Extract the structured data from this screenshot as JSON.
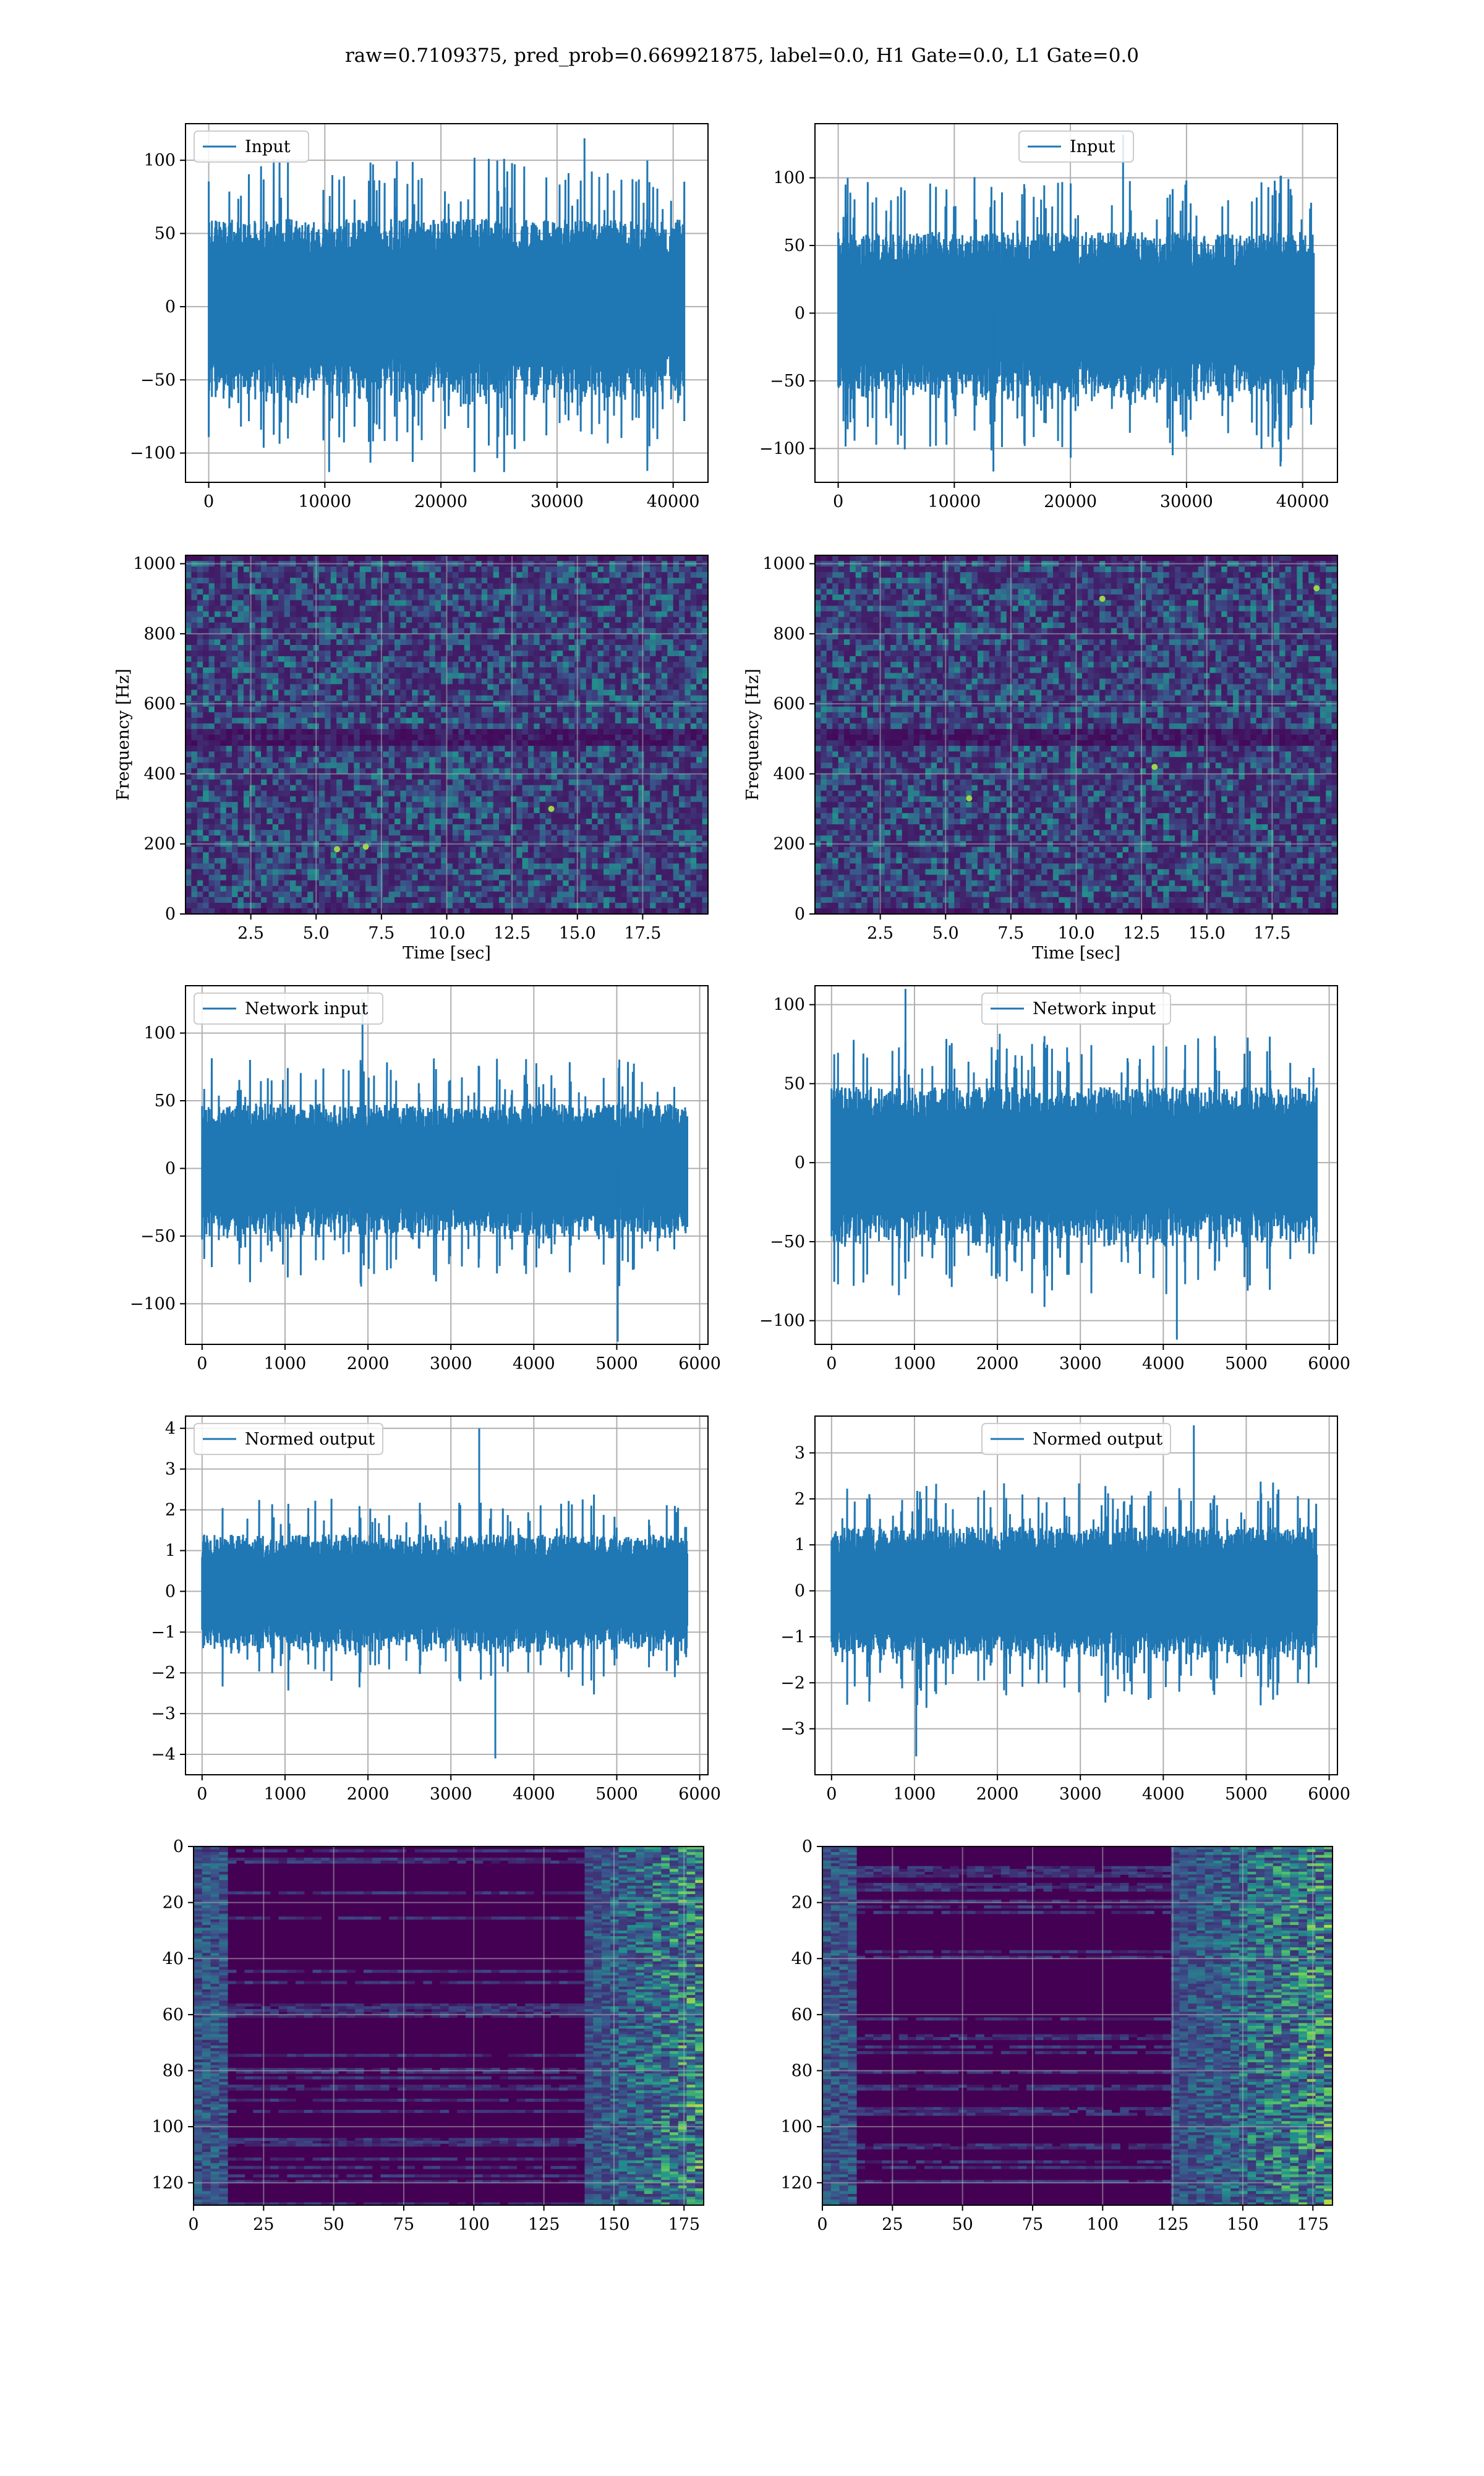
{
  "figure_title": "raw=0.7109375, pred_prob=0.669921875, label=0.0, H1 Gate=0.0, L1 Gate=0.0",
  "colors": {
    "line": "#1f77b4",
    "grid": "#b0b0b0",
    "viridis_low": "#440154",
    "viridis_mid": "#21918c",
    "viridis_high": "#fde725"
  },
  "chart_data": [
    {
      "id": "input-left",
      "type": "line",
      "legend": "Input",
      "legend_loc": "upper left",
      "xlim": [
        -2000,
        43000
      ],
      "ylim": [
        -120,
        125
      ],
      "xticks": [
        0,
        10000,
        20000,
        30000,
        40000
      ],
      "yticks": [
        -100,
        -50,
        0,
        50,
        100
      ],
      "x_range": [
        0,
        40960
      ],
      "envelope": 60,
      "peak": 115,
      "trough": -113,
      "xlabel": "",
      "ylabel": ""
    },
    {
      "id": "input-right",
      "type": "line",
      "legend": "Input",
      "legend_loc": "upper center",
      "xlim": [
        -2000,
        43000
      ],
      "ylim": [
        -125,
        140
      ],
      "xticks": [
        0,
        10000,
        20000,
        30000,
        40000
      ],
      "yticks": [
        -100,
        -50,
        0,
        50,
        100
      ],
      "x_range": [
        0,
        40960
      ],
      "envelope": 60,
      "peak": 132,
      "trough": -117,
      "xlabel": "",
      "ylabel": ""
    },
    {
      "id": "spec-left",
      "type": "heatmap",
      "colormap": "viridis",
      "xlim": [
        0,
        20
      ],
      "ylim": [
        0,
        1024
      ],
      "xticks": [
        2.5,
        5.0,
        7.5,
        10.0,
        12.5,
        15.0,
        17.5
      ],
      "yticks": [
        0,
        200,
        400,
        600,
        800,
        1000
      ],
      "xticklabels": [
        "2.5",
        "5.0",
        "7.5",
        "10.0",
        "12.5",
        "15.0",
        "17.5"
      ],
      "xlabel": "Time [sec]",
      "ylabel": "Frequency [Hz]",
      "dark_band_hz": 512,
      "hot_spots": [
        [
          5.8,
          185
        ],
        [
          6.9,
          192
        ],
        [
          14.0,
          300
        ]
      ]
    },
    {
      "id": "spec-right",
      "type": "heatmap",
      "colormap": "viridis",
      "xlim": [
        0,
        20
      ],
      "ylim": [
        0,
        1024
      ],
      "xticks": [
        2.5,
        5.0,
        7.5,
        10.0,
        12.5,
        15.0,
        17.5
      ],
      "yticks": [
        0,
        200,
        400,
        600,
        800,
        1000
      ],
      "xticklabels": [
        "2.5",
        "5.0",
        "7.5",
        "10.0",
        "12.5",
        "15.0",
        "17.5"
      ],
      "xlabel": "Time [sec]",
      "ylabel": "Frequency [Hz]",
      "dark_band_hz": 512,
      "hot_spots": [
        [
          5.9,
          330
        ],
        [
          19.2,
          930
        ],
        [
          13.0,
          420
        ],
        [
          11.0,
          900
        ]
      ]
    },
    {
      "id": "net-left",
      "type": "line",
      "legend": "Network input",
      "legend_loc": "upper left",
      "xlim": [
        -200,
        6100
      ],
      "ylim": [
        -130,
        135
      ],
      "xticks": [
        0,
        1000,
        2000,
        3000,
        4000,
        5000,
        6000
      ],
      "yticks": [
        -100,
        -50,
        0,
        50,
        100
      ],
      "x_range": [
        0,
        5850
      ],
      "envelope": 48,
      "peak": 125,
      "trough": -128,
      "xlabel": "",
      "ylabel": ""
    },
    {
      "id": "net-right",
      "type": "line",
      "legend": "Network input",
      "legend_loc": "upper center",
      "xlim": [
        -200,
        6100
      ],
      "ylim": [
        -115,
        112
      ],
      "xticks": [
        0,
        1000,
        2000,
        3000,
        4000,
        5000,
        6000
      ],
      "yticks": [
        -100,
        -50,
        0,
        50,
        100
      ],
      "x_range": [
        0,
        5850
      ],
      "envelope": 48,
      "peak": 110,
      "trough": -112,
      "xlabel": "",
      "ylabel": ""
    },
    {
      "id": "norm-left",
      "type": "line",
      "legend": "Normed output",
      "legend_loc": "upper left",
      "xlim": [
        -200,
        6100
      ],
      "ylim": [
        -4.5,
        4.3
      ],
      "xticks": [
        0,
        1000,
        2000,
        3000,
        4000,
        5000,
        6000
      ],
      "yticks": [
        -4,
        -3,
        -2,
        -1,
        0,
        1,
        2,
        3,
        4
      ],
      "x_range": [
        0,
        5850
      ],
      "envelope": 1.4,
      "peak": 4.0,
      "trough": -4.1,
      "xlabel": "",
      "ylabel": ""
    },
    {
      "id": "norm-right",
      "type": "line",
      "legend": "Normed output",
      "legend_loc": "upper center",
      "xlim": [
        -200,
        6100
      ],
      "ylim": [
        -4.0,
        3.8
      ],
      "xticks": [
        0,
        1000,
        2000,
        3000,
        4000,
        5000,
        6000
      ],
      "yticks": [
        -3,
        -2,
        -1,
        0,
        1,
        2,
        3
      ],
      "x_range": [
        0,
        5850
      ],
      "envelope": 1.4,
      "peak": 3.6,
      "trough": -3.6,
      "xlabel": "",
      "ylabel": ""
    },
    {
      "id": "feat-left",
      "type": "heatmap",
      "colormap": "viridis",
      "xlim": [
        0,
        182
      ],
      "ylim": [
        128,
        0
      ],
      "xticks": [
        0,
        25,
        50,
        75,
        100,
        125,
        150,
        175
      ],
      "yticks": [
        0,
        20,
        40,
        60,
        80,
        100,
        120
      ],
      "xlabel": "",
      "ylabel": "",
      "activity_starts_at": 140
    },
    {
      "id": "feat-right",
      "type": "heatmap",
      "colormap": "viridis",
      "xlim": [
        0,
        182
      ],
      "ylim": [
        128,
        0
      ],
      "xticks": [
        0,
        25,
        50,
        75,
        100,
        125,
        150,
        175
      ],
      "yticks": [
        0,
        20,
        40,
        60,
        80,
        100,
        120
      ],
      "xlabel": "",
      "ylabel": "",
      "activity_starts_at": 125
    }
  ]
}
